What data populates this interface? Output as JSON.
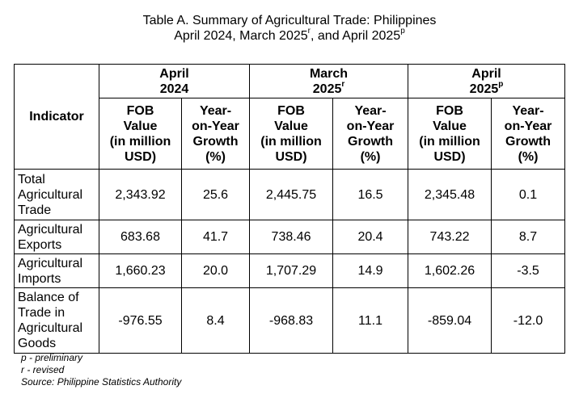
{
  "title": {
    "line1": "Table A. Summary of Agricultural Trade: Philippines",
    "line2_a": "April 2024, March 2025",
    "line2_sup1": "r",
    "line2_b": ", and April 2025",
    "line2_sup2": "p"
  },
  "table": {
    "indicator_header": "Indicator",
    "periods": [
      {
        "month": "April",
        "year": "2024",
        "mark": ""
      },
      {
        "month": "March",
        "year": "2025",
        "mark": "r"
      },
      {
        "month": "April",
        "year": "2025",
        "mark": "p"
      }
    ],
    "sub_headers": {
      "fob_l1": "FOB",
      "fob_l2": "Value",
      "fob_l3": "(in million",
      "fob_l4": "USD)",
      "yoy_l1": "Year-",
      "yoy_l2": "on-Year",
      "yoy_l3": "Growth",
      "yoy_l4": "(%)"
    },
    "rows": [
      {
        "indicator": [
          "Total",
          "Agricultural",
          "Trade"
        ],
        "values": [
          "2,343.92",
          "25.6",
          "2,445.75",
          "16.5",
          "2,345.48",
          "0.1"
        ]
      },
      {
        "indicator": [
          "Agricultural",
          "Exports"
        ],
        "values": [
          "683.68",
          "41.7",
          "738.46",
          "20.4",
          "743.22",
          "8.7"
        ]
      },
      {
        "indicator": [
          "Agricultural",
          "Imports"
        ],
        "values": [
          "1,660.23",
          "20.0",
          "1,707.29",
          "14.9",
          "1,602.26",
          "-3.5"
        ]
      },
      {
        "indicator": [
          "Balance of",
          "Trade in",
          "Agricultural",
          "Goods"
        ],
        "values": [
          "-976.55",
          "8.4",
          "-968.83",
          "11.1",
          "-859.04",
          "-12.0"
        ]
      }
    ]
  },
  "notes": [
    "p - preliminary",
    "r - revised",
    "Source: Philippine Statistics Authority"
  ]
}
